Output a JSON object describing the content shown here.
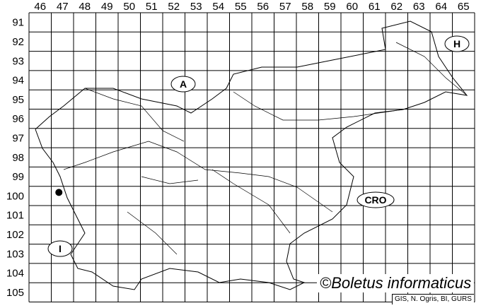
{
  "grid": {
    "columns": [
      "46",
      "47",
      "48",
      "49",
      "50",
      "51",
      "52",
      "53",
      "54",
      "55",
      "56",
      "57",
      "58",
      "59",
      "60",
      "61",
      "62",
      "63",
      "64",
      "65"
    ],
    "rows": [
      "91",
      "92",
      "93",
      "94",
      "95",
      "96",
      "97",
      "98",
      "99",
      "100",
      "101",
      "102",
      "103",
      "104",
      "105"
    ]
  },
  "countries": [
    {
      "id": "austria",
      "label": "A"
    },
    {
      "id": "croatia",
      "label": "CRO"
    },
    {
      "id": "hungary",
      "label": "H"
    },
    {
      "id": "italy",
      "label": "I"
    }
  ],
  "records": [
    {
      "column": "47",
      "row": "100",
      "marker": "filled-dot"
    }
  ],
  "copyright": "©Boletus informaticus",
  "credit": "GIS, N. Ogris, BI, GURS",
  "colors": {
    "lines": "#000000",
    "background": "#ffffff"
  }
}
